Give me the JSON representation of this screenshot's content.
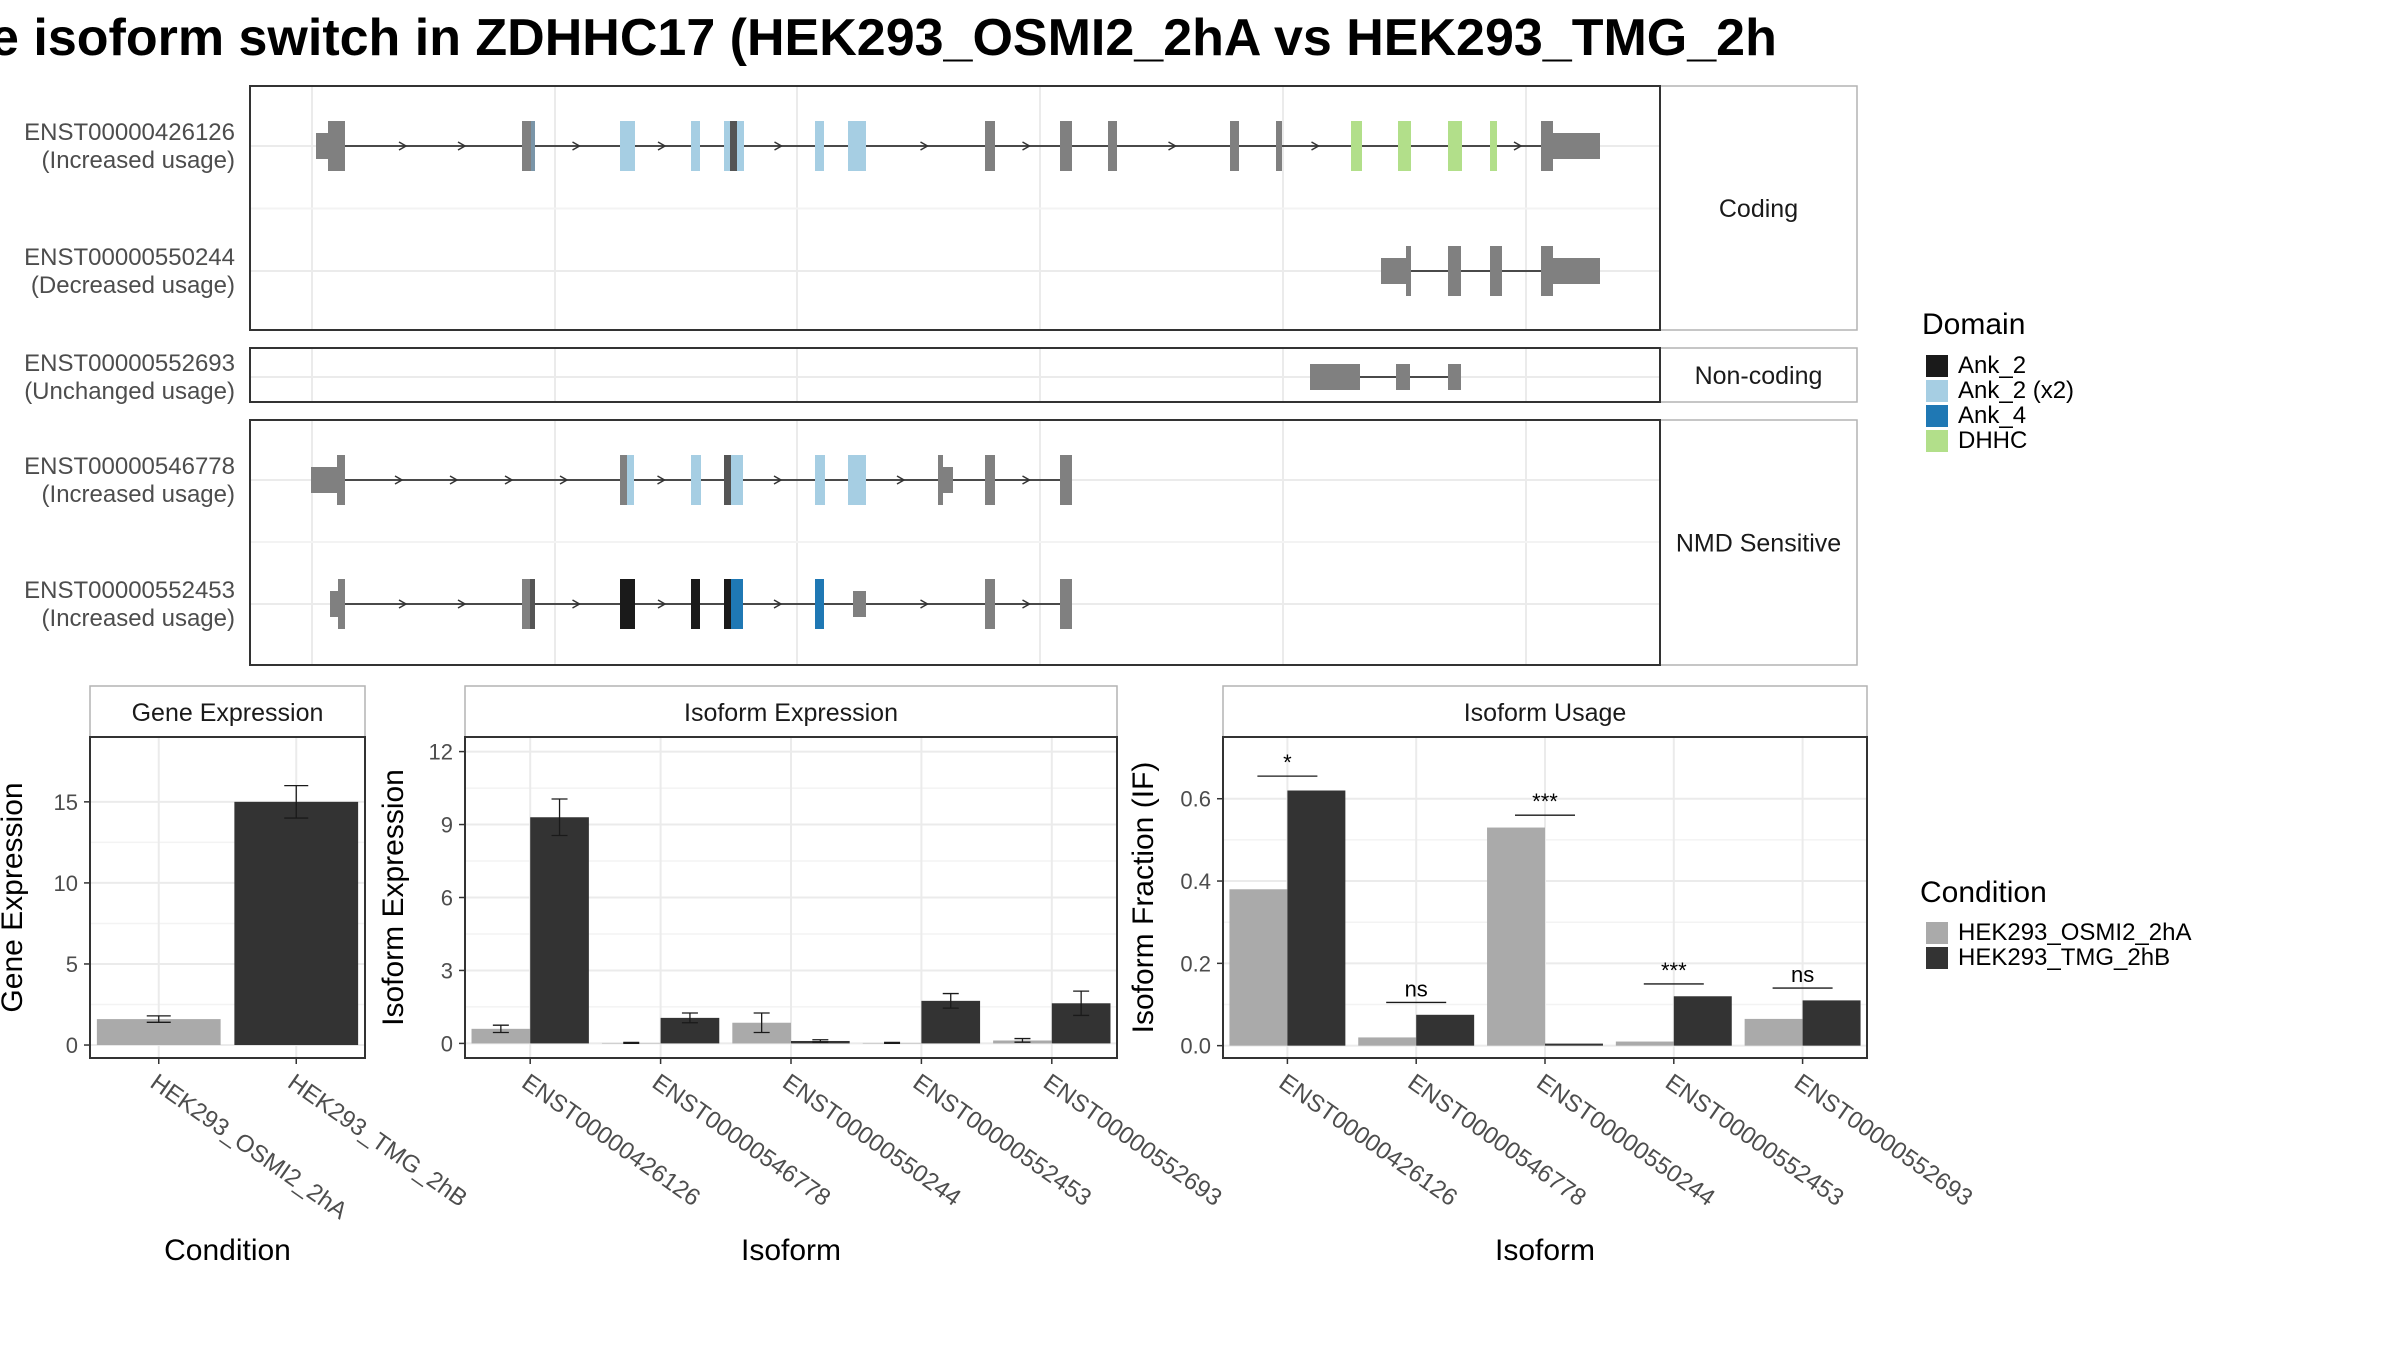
{
  "title": "e isoform switch in ZDHHC17 (HEK293_OSMI2_2hA vs HEK293_TMG_2h",
  "colors": {
    "exon": "#808080",
    "intron": "#333333",
    "panel_border": "#333333",
    "strip_border": "#b3b3b3",
    "grid": "#ebebeb",
    "HEK293_OSMI2_2hA": "#aaaaaa",
    "HEK293_TMG_2hB": "#333333"
  },
  "structure": {
    "groups": [
      {
        "strip_label": "Coding",
        "transcripts": [
          {
            "id": "ENST00000426126",
            "status": "(Increased usage)"
          },
          {
            "id": "ENST00000550244",
            "status": "(Decreased usage)"
          }
        ]
      },
      {
        "strip_label": "Non-coding",
        "transcripts": [
          {
            "id": "ENST00000552693",
            "status": "(Unchanged usage)"
          }
        ]
      },
      {
        "strip_label": "NMD Sensitive",
        "transcripts": [
          {
            "id": "ENST00000546778",
            "status": "(Increased usage)"
          },
          {
            "id": "ENST00000552453",
            "status": "(Increased usage)"
          }
        ]
      }
    ]
  },
  "domain_legend": {
    "title": "Domain",
    "items": [
      {
        "label": "Ank_2",
        "color": "#1a1a1a"
      },
      {
        "label": "Ank_2 (x2)",
        "color": "#a6cee3"
      },
      {
        "label": "Ank_4",
        "color": "#1f78b4"
      },
      {
        "label": "DHHC",
        "color": "#b2df8a"
      }
    ]
  },
  "condition_legend": {
    "title": "Condition",
    "items": [
      {
        "label": "HEK293_OSMI2_2hA",
        "color": "#aaaaaa"
      },
      {
        "label": "HEK293_TMG_2hB",
        "color": "#333333"
      }
    ]
  },
  "chart_data": [
    {
      "type": "bar",
      "title": "Gene Expression",
      "xlabel": "Condition",
      "ylabel": "Gene Expression",
      "categories": [
        "HEK293_OSMI2_2hA",
        "HEK293_TMG_2hB"
      ],
      "values": [
        1.6,
        15.0
      ],
      "errors": [
        [
          1.4,
          1.8
        ],
        [
          14.0,
          16.0
        ]
      ],
      "ylim": [
        -0.8,
        19.0
      ],
      "yticks": [
        0,
        5,
        10,
        15
      ]
    },
    {
      "type": "bar",
      "title": "Isoform Expression",
      "xlabel": "Isoform",
      "ylabel": "Isoform Expression",
      "categories": [
        "ENST00000426126",
        "ENST00000546778",
        "ENST00000550244",
        "ENST00000552453",
        "ENST00000552693"
      ],
      "series": [
        {
          "name": "HEK293_OSMI2_2hA",
          "values": [
            0.6,
            0.02,
            0.85,
            0.02,
            0.12
          ],
          "errors": [
            [
              0.45,
              0.75
            ],
            [
              0.0,
              0.04
            ],
            [
              0.45,
              1.25
            ],
            [
              0.0,
              0.04
            ],
            [
              0.05,
              0.2
            ]
          ]
        },
        {
          "name": "HEK293_TMG_2hB",
          "values": [
            9.3,
            1.05,
            0.1,
            1.75,
            1.65
          ],
          "errors": [
            [
              8.55,
              10.05
            ],
            [
              0.85,
              1.25
            ],
            [
              0.05,
              0.15
            ],
            [
              1.45,
              2.05
            ],
            [
              1.15,
              2.15
            ]
          ]
        }
      ],
      "ylim": [
        -0.6,
        12.6
      ],
      "yticks": [
        0,
        3,
        6,
        9,
        12
      ]
    },
    {
      "type": "bar",
      "title": "Isoform Usage",
      "xlabel": "Isoform",
      "ylabel": "Isoform Fraction (IF)",
      "categories": [
        "ENST00000426126",
        "ENST00000546778",
        "ENST00000550244",
        "ENST00000552453",
        "ENST00000552693"
      ],
      "series": [
        {
          "name": "HEK293_OSMI2_2hA",
          "values": [
            0.38,
            0.02,
            0.53,
            0.01,
            0.065
          ]
        },
        {
          "name": "HEK293_TMG_2hB",
          "values": [
            0.62,
            0.075,
            0.005,
            0.12,
            0.11
          ]
        }
      ],
      "significance": [
        {
          "label": "*",
          "y": 0.655
        },
        {
          "label": "ns",
          "y": 0.105
        },
        {
          "label": "***",
          "y": 0.56
        },
        {
          "label": "***",
          "y": 0.15
        },
        {
          "label": "ns",
          "y": 0.14
        }
      ],
      "ylim": [
        -0.03,
        0.75
      ],
      "yticks": [
        0.0,
        0.2,
        0.4,
        0.6
      ],
      "ytick_labels": [
        "0.0",
        "0.2",
        "0.4",
        "0.6"
      ]
    }
  ]
}
